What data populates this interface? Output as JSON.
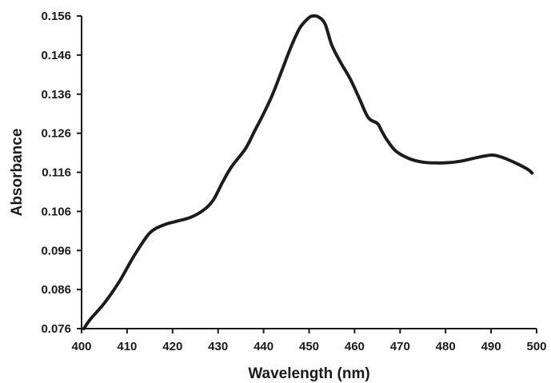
{
  "chart_data": {
    "type": "line",
    "title": "",
    "xlabel": "Wavelength (nm)",
    "ylabel": "Absorbance",
    "xlim": [
      400,
      500
    ],
    "ylim": [
      0.076,
      0.156
    ],
    "grid": false,
    "legend": "none",
    "x_ticks": [
      "400",
      "410",
      "420",
      "430",
      "440",
      "450",
      "460",
      "470",
      "480",
      "490",
      "500"
    ],
    "y_ticks": [
      "0.076",
      "0.086",
      "0.096",
      "0.106",
      "0.116",
      "0.126",
      "0.136",
      "0.146",
      "0.156"
    ],
    "line_color": "#1c1c1c",
    "series": [
      {
        "x": [
          400.5,
          402,
          405,
          408,
          410,
          412,
          415,
          418,
          421,
          424,
          427,
          429,
          431,
          433,
          436,
          438,
          440,
          442,
          444,
          446,
          448,
          450,
          451,
          452,
          453.5,
          455,
          457,
          459,
          461,
          463,
          465,
          466,
          467,
          469,
          472,
          475,
          478,
          481,
          484,
          487,
          490,
          492,
          495,
          498,
          499
        ],
        "y": [
          0.076,
          0.0785,
          0.0825,
          0.0875,
          0.0915,
          0.0955,
          0.1005,
          0.1025,
          0.1035,
          0.1045,
          0.1065,
          0.109,
          0.1135,
          0.1175,
          0.122,
          0.1265,
          0.131,
          0.136,
          0.142,
          0.148,
          0.153,
          0.1556,
          0.156,
          0.1558,
          0.154,
          0.1485,
          0.144,
          0.14,
          0.135,
          0.13,
          0.1285,
          0.1265,
          0.1245,
          0.1215,
          0.1195,
          0.1186,
          0.1184,
          0.1185,
          0.119,
          0.1198,
          0.1204,
          0.12,
          0.1186,
          0.1168,
          0.1158
        ]
      }
    ]
  }
}
